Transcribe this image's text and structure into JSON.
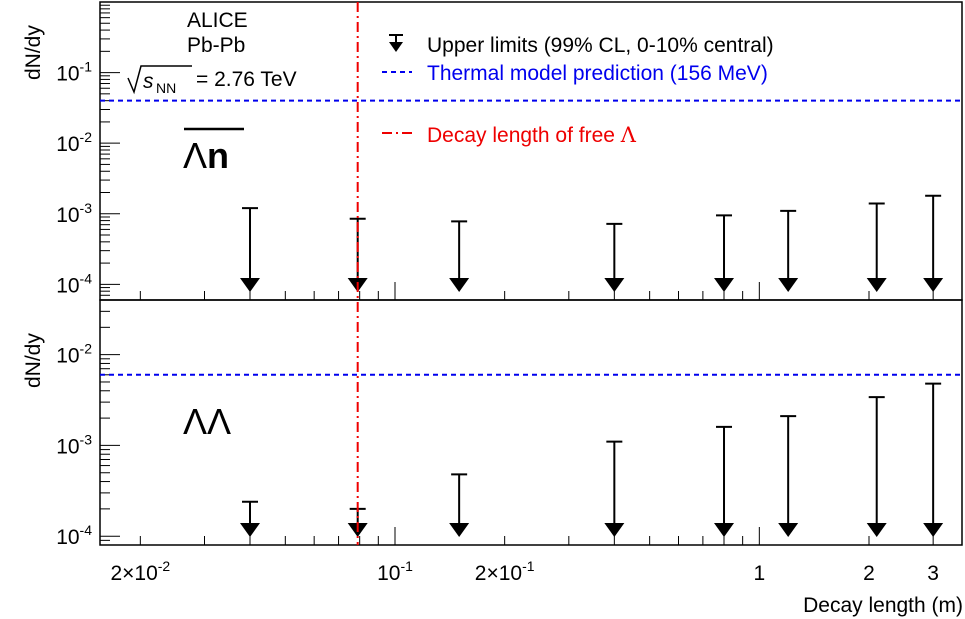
{
  "chart_data": [
    {
      "type": "scatter",
      "panel": "top",
      "annotation": {
        "experiment": "ALICE",
        "system": "Pb-Pb",
        "energy_sqrt": "s",
        "energy_sub": "NN",
        "energy_value": "= 2.76 TeV"
      },
      "particle_label": {
        "bar_symbol": "Λ",
        "symbol": "n"
      },
      "ylabel": "dN/dy",
      "yscale": "log",
      "ylim": [
        6e-05,
        1.0
      ],
      "y_ticks": [
        {
          "base": "10",
          "exp": "-4",
          "value": 0.0001
        },
        {
          "base": "10",
          "exp": "-3",
          "value": 0.001
        },
        {
          "base": "10",
          "exp": "-2",
          "value": 0.01
        },
        {
          "base": "10",
          "exp": "-1",
          "value": 0.1
        }
      ],
      "thermal_prediction": 0.04,
      "legend": {
        "upper_limits": "Upper limits (99% CL, 0-10% central)",
        "thermal": "Thermal model prediction (156 MeV)",
        "decay_prefix": "Decay length of free ",
        "decay_symbol": "Λ"
      },
      "series": [
        {
          "name": "Upper limits (99% CL, 0-10% central)",
          "x": [
            0.04,
            0.079,
            0.15,
            0.4,
            0.8,
            1.2,
            2.1,
            3.0
          ],
          "values": [
            0.0012,
            0.00085,
            0.00078,
            0.00072,
            0.00095,
            0.0011,
            0.0014,
            0.0018
          ]
        }
      ]
    },
    {
      "type": "scatter",
      "panel": "bottom",
      "particle_label": "ΛΛ",
      "ylabel": "dN/dy",
      "yscale": "log",
      "ylim": [
        8e-05,
        0.04
      ],
      "y_ticks": [
        {
          "base": "10",
          "exp": "-4",
          "value": 0.0001
        },
        {
          "base": "10",
          "exp": "-3",
          "value": 0.001
        },
        {
          "base": "10",
          "exp": "-2",
          "value": 0.01
        }
      ],
      "thermal_prediction": 0.006,
      "series": [
        {
          "name": "Upper limits (99% CL, 0-10% central)",
          "x": [
            0.04,
            0.079,
            0.15,
            0.4,
            0.8,
            1.2,
            2.1,
            3.0
          ],
          "values": [
            0.00024,
            0.0002,
            0.00048,
            0.0011,
            0.0016,
            0.0021,
            0.0034,
            0.0048
          ]
        }
      ]
    }
  ],
  "x_axis": {
    "xlabel": "Decay length (m)",
    "xscale": "log",
    "xlim": [
      0.0155,
      3.6
    ],
    "ticks": [
      {
        "mant": "2",
        "base": "10",
        "exp": "-2",
        "value": 0.02
      },
      {
        "mant": "",
        "base": "10",
        "exp": "-1",
        "value": 0.1
      },
      {
        "mant": "2",
        "base": "10",
        "exp": "-1",
        "value": 0.2
      },
      {
        "mant": "",
        "base": "1",
        "exp": "",
        "value": 1
      },
      {
        "mant": "",
        "base": "2",
        "exp": "",
        "value": 2
      },
      {
        "mant": "",
        "base": "3",
        "exp": "",
        "value": 3
      }
    ]
  },
  "free_lambda_decay_length": 0.079,
  "colors": {
    "thermal_line": "#0000ee",
    "decay_line": "#ee0000",
    "markers": "#000000"
  }
}
